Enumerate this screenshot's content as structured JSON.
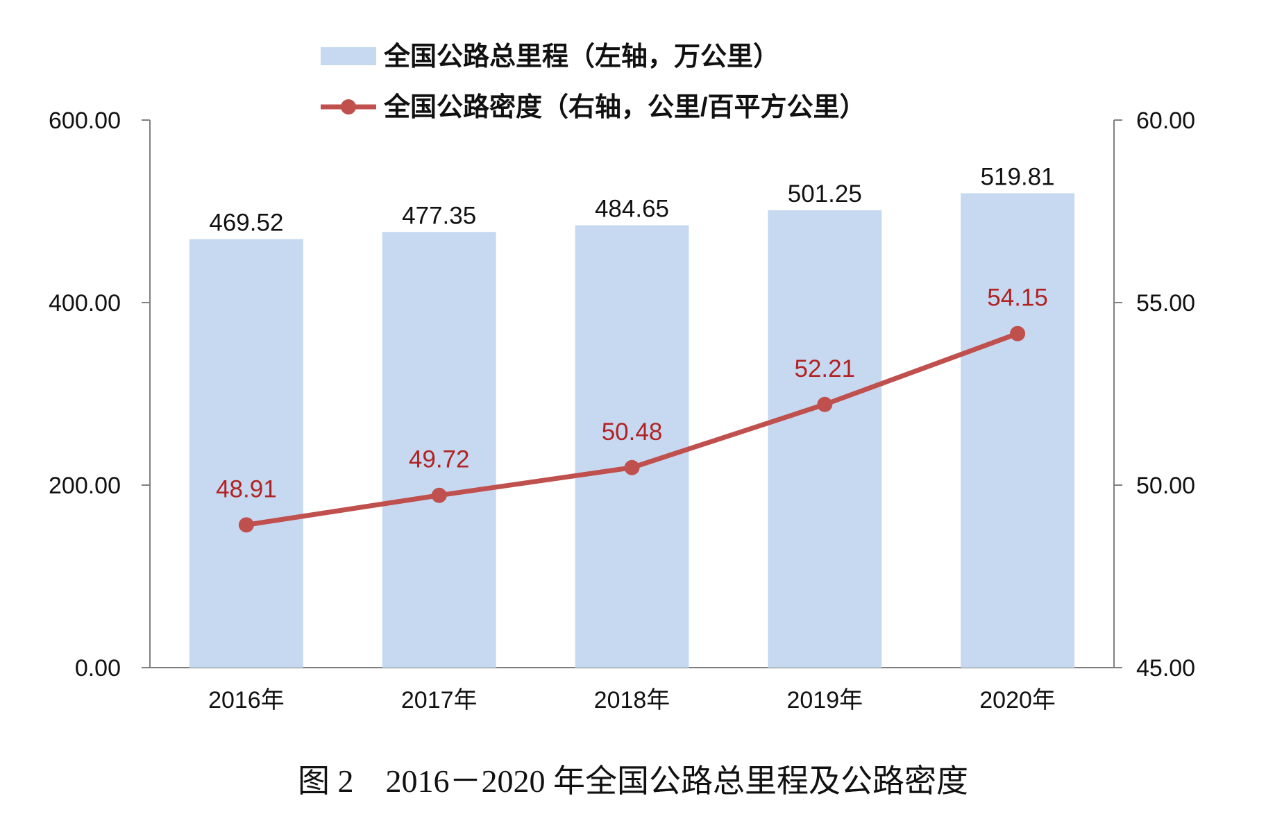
{
  "chart_data": {
    "type": "bar+line",
    "categories": [
      "2016年",
      "2017年",
      "2018年",
      "2019年",
      "2020年"
    ],
    "series": [
      {
        "name": "全国公路总里程（左轴，万公里）",
        "type": "bar",
        "axis": "left",
        "values": [
          469.52,
          477.35,
          484.65,
          501.25,
          519.81
        ],
        "labels": [
          "469.52",
          "477.35",
          "484.65",
          "501.25",
          "519.81"
        ],
        "color": "#c6d9f0"
      },
      {
        "name": "全国公路密度（右轴，公里/百平方公里）",
        "type": "line",
        "axis": "right",
        "values": [
          48.91,
          49.72,
          50.48,
          52.21,
          54.15
        ],
        "labels": [
          "48.91",
          "49.72",
          "50.48",
          "52.21",
          "54.15"
        ],
        "color": "#c0504d",
        "label_color": "#b22222"
      }
    ],
    "left_axis": {
      "min": 0,
      "max": 600,
      "step": 200,
      "tick_labels": [
        "0.00",
        "200.00",
        "400.00",
        "600.00"
      ]
    },
    "right_axis": {
      "min": 45,
      "max": 60,
      "step": 5,
      "tick_labels": [
        "45.00",
        "50.00",
        "55.00",
        "60.00"
      ]
    },
    "legend_position": "top-center",
    "grid": false,
    "caption": "图 2　2016－2020 年全国公路总里程及公路密度"
  }
}
